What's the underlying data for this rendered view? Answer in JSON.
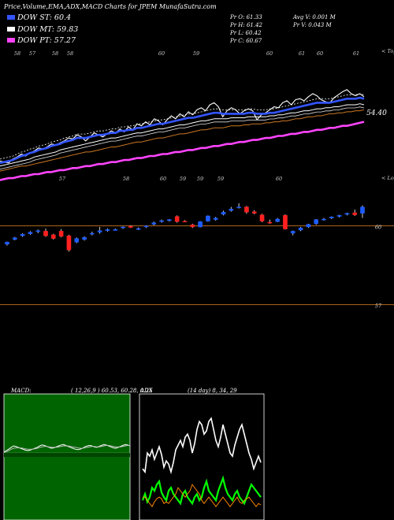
{
  "header": {
    "title": "Price,Volume,EMA,ADX,MACD Charts for JPEM MunafaSutra.com",
    "ema_st": "DOW ST: 60.4",
    "ema_mt": "DOW MT: 59.83",
    "ema_pt": "DOW PT: 57.27",
    "pr_o": "Pr   O: 61.33",
    "pr_h": "Pr   H: 61.42",
    "pr_l": "Pr   L: 60.42",
    "pr_c": "Pr   C: 60.67",
    "avg_v": "Avg V: 0.001 M",
    "pr_v": "Pr   V: 0.043 M"
  },
  "colors": {
    "up": "#1e5cff",
    "down": "#ff2020",
    "ema_st": "#3355ff",
    "ema_mt": "#ffffff",
    "ema_pt": "#ff44ff",
    "orange": "#cc7722",
    "macd_panel": "#006400",
    "adx_green": "#00ff00"
  },
  "panels": {
    "top_label": "< Topo",
    "middle_label": "< Lows",
    "macd_label": "MACD:",
    "macd_values": "( 12,26,9 ) 60.53, 60.28, 0.25",
    "adx_label": "ADX",
    "adx_values": "(14 day) 8, 34, 29"
  },
  "chart_data": [
    {
      "type": "line",
      "panel": "price-ema",
      "right_label": "54.40",
      "top_tick_labels": [
        "58",
        "57",
        "58",
        "58",
        "60",
        "59",
        "60",
        "61",
        "60",
        "61"
      ],
      "bottom_tick_labels": [
        "57",
        "58",
        "60",
        "59",
        "59",
        "59",
        "60"
      ],
      "series": [
        {
          "name": "price",
          "values": [
            54.2,
            54.1,
            54.0,
            54.4,
            54.6,
            54.9,
            54.7,
            55.0,
            55.2,
            55.5,
            55.4,
            55.6,
            55.9,
            55.8,
            56.0,
            56.2,
            56.5,
            56.4,
            56.8,
            56.6,
            56.2,
            56.6,
            57.0,
            56.8,
            56.6,
            56.9,
            57.2,
            57.0,
            57.4,
            57.1,
            57.6,
            57.3,
            57.9,
            57.7,
            58.1,
            57.8,
            58.4,
            58.2,
            57.8,
            58.3,
            58.7,
            58.4,
            58.9,
            58.6,
            59.1,
            58.8,
            59.3,
            59.5,
            59.2,
            59.8,
            60.0,
            59.6,
            58.6,
            59.2,
            59.5,
            59.3,
            58.9,
            59.2,
            59.4,
            59.2,
            58.3,
            58.8,
            59.0,
            59.3,
            59.6,
            59.5,
            60.0,
            60.2,
            59.8,
            60.3,
            60.4,
            60.2,
            60.6,
            60.9,
            60.7,
            60.3,
            60.1,
            60.0,
            60.5,
            60.8,
            61.1,
            61.3,
            60.9,
            60.7,
            60.9,
            60.6
          ]
        },
        {
          "name": "ema-st",
          "values": [
            54.0,
            54.1,
            54.2,
            54.3,
            54.5,
            54.7,
            54.8,
            55.0,
            55.1,
            55.3,
            55.4,
            55.5,
            55.7,
            55.8,
            55.9,
            56.1,
            56.2,
            56.3,
            56.5,
            56.5,
            56.5,
            56.6,
            56.7,
            56.8,
            56.8,
            56.9,
            57.0,
            57.0,
            57.2,
            57.2,
            57.3,
            57.3,
            57.5,
            57.5,
            57.6,
            57.7,
            57.8,
            57.9,
            57.9,
            58.0,
            58.1,
            58.2,
            58.3,
            58.4,
            58.5,
            58.5,
            58.6,
            58.7,
            58.8,
            58.9,
            59.0,
            59.0,
            58.9,
            58.9,
            58.9,
            58.9,
            58.9,
            58.9,
            59.0,
            59.0,
            58.9,
            58.9,
            58.9,
            59.0,
            59.0,
            59.1,
            59.2,
            59.3,
            59.4,
            59.5,
            59.6,
            59.7,
            59.8,
            59.9,
            60.0,
            60.0,
            60.0,
            60.0,
            60.1,
            60.2,
            60.3,
            60.4,
            60.4,
            60.4,
            60.5,
            60.4
          ]
        },
        {
          "name": "ema-mt",
          "values": [
            53.7,
            53.8,
            53.9,
            54.0,
            54.1,
            54.2,
            54.3,
            54.4,
            54.6,
            54.7,
            54.8,
            54.9,
            55.0,
            55.1,
            55.3,
            55.4,
            55.5,
            55.6,
            55.7,
            55.8,
            55.9,
            56.0,
            56.1,
            56.2,
            56.3,
            56.4,
            56.5,
            56.5,
            56.6,
            56.7,
            56.8,
            56.9,
            57.0,
            57.0,
            57.1,
            57.2,
            57.3,
            57.4,
            57.4,
            57.5,
            57.6,
            57.7,
            57.8,
            57.8,
            57.9,
            58.0,
            58.1,
            58.2,
            58.2,
            58.3,
            58.4,
            58.4,
            58.4,
            58.4,
            58.5,
            58.5,
            58.5,
            58.5,
            58.6,
            58.6,
            58.6,
            58.6,
            58.6,
            58.7,
            58.7,
            58.8,
            58.8,
            58.9,
            59.0,
            59.0,
            59.1,
            59.2,
            59.2,
            59.3,
            59.4,
            59.4,
            59.5,
            59.5,
            59.6,
            59.6,
            59.7,
            59.8,
            59.8,
            59.8,
            59.9,
            59.8
          ]
        },
        {
          "name": "ema-lt",
          "values": [
            53.2,
            53.3,
            53.4,
            53.5,
            53.6,
            53.7,
            53.7,
            53.8,
            53.9,
            54.0,
            54.1,
            54.2,
            54.3,
            54.4,
            54.5,
            54.6,
            54.7,
            54.8,
            54.9,
            55.0,
            55.1,
            55.1,
            55.2,
            55.3,
            55.4,
            55.5,
            55.6,
            55.6,
            55.7,
            55.8,
            55.9,
            56.0,
            56.1,
            56.1,
            56.2,
            56.3,
            56.4,
            56.5,
            56.5,
            56.6,
            56.7,
            56.8,
            56.9,
            56.9,
            57.0,
            57.1,
            57.2,
            57.3,
            57.3,
            57.4,
            57.5,
            57.5,
            57.5,
            57.6,
            57.7,
            57.7,
            57.7,
            57.8,
            57.8,
            57.9,
            57.9,
            57.9,
            58.0,
            58.0,
            58.1,
            58.1,
            58.2,
            58.2,
            58.3,
            58.4,
            58.4,
            58.5,
            58.6,
            58.6,
            58.7,
            58.7,
            58.8,
            58.9,
            58.9,
            59.0,
            59.0,
            59.1,
            59.1,
            59.2,
            59.2,
            59.3
          ]
        },
        {
          "name": "ema-pt",
          "values": [
            52.3,
            52.4,
            52.5,
            52.5,
            52.6,
            52.7,
            52.7,
            52.8,
            52.9,
            52.9,
            53.0,
            53.1,
            53.1,
            53.2,
            53.3,
            53.3,
            53.4,
            53.5,
            53.5,
            53.6,
            53.7,
            53.7,
            53.8,
            53.9,
            53.9,
            54.0,
            54.1,
            54.1,
            54.2,
            54.3,
            54.3,
            54.4,
            54.5,
            54.5,
            54.6,
            54.7,
            54.7,
            54.8,
            54.9,
            54.9,
            55.0,
            55.1,
            55.1,
            55.2,
            55.3,
            55.3,
            55.4,
            55.5,
            55.5,
            55.6,
            55.7,
            55.7,
            55.8,
            55.9,
            55.9,
            56.0,
            56.1,
            56.1,
            56.2,
            56.3,
            56.3,
            56.4,
            56.5,
            56.5,
            56.6,
            56.7,
            56.7,
            56.8,
            56.9,
            56.9,
            57.0,
            57.1,
            57.1,
            57.2,
            57.3,
            57.3,
            57.4,
            57.5,
            57.5,
            57.6,
            57.7,
            57.7,
            57.8,
            57.9,
            58.0,
            58.1
          ]
        }
      ]
    },
    {
      "type": "candlestick",
      "panel": "price-candles",
      "ylim": [
        56.6,
        61.4
      ],
      "hlines": [
        60,
        57
      ],
      "hline_labels": [
        "60",
        "57"
      ],
      "candles": [
        {
          "o": 59.3,
          "h": 59.4,
          "l": 59.25,
          "c": 59.38
        },
        {
          "o": 59.48,
          "h": 59.58,
          "l": 59.45,
          "c": 59.55
        },
        {
          "o": 59.62,
          "h": 59.72,
          "l": 59.58,
          "c": 59.68
        },
        {
          "o": 59.7,
          "h": 59.8,
          "l": 59.66,
          "c": 59.76
        },
        {
          "o": 59.78,
          "h": 59.86,
          "l": 59.72,
          "c": 59.82
        },
        {
          "o": 59.8,
          "h": 59.9,
          "l": 59.58,
          "c": 59.62
        },
        {
          "o": 59.66,
          "h": 59.7,
          "l": 59.48,
          "c": 59.52
        },
        {
          "o": 59.8,
          "h": 59.88,
          "l": 59.56,
          "c": 59.6
        },
        {
          "o": 59.62,
          "h": 59.66,
          "l": 59.02,
          "c": 59.08
        },
        {
          "o": 59.38,
          "h": 59.56,
          "l": 59.34,
          "c": 59.52
        },
        {
          "o": 59.48,
          "h": 59.6,
          "l": 59.44,
          "c": 59.56
        },
        {
          "o": 59.7,
          "h": 59.78,
          "l": 59.64,
          "c": 59.72
        },
        {
          "o": 59.76,
          "h": 59.96,
          "l": 59.7,
          "c": 59.82
        },
        {
          "o": 59.82,
          "h": 59.9,
          "l": 59.78,
          "c": 59.86
        },
        {
          "o": 59.86,
          "h": 59.9,
          "l": 59.84,
          "c": 59.86
        },
        {
          "o": 59.92,
          "h": 59.98,
          "l": 59.88,
          "c": 59.96
        },
        {
          "o": 59.98,
          "h": 60.02,
          "l": 59.92,
          "c": 59.94
        },
        {
          "o": 59.88,
          "h": 59.94,
          "l": 59.84,
          "c": 59.9
        },
        {
          "o": 59.96,
          "h": 60.02,
          "l": 59.92,
          "c": 60.0
        },
        {
          "o": 60.06,
          "h": 60.16,
          "l": 60.02,
          "c": 60.12
        },
        {
          "o": 60.16,
          "h": 60.24,
          "l": 60.12,
          "c": 60.2
        },
        {
          "o": 60.2,
          "h": 60.26,
          "l": 60.16,
          "c": 60.24
        },
        {
          "o": 60.36,
          "h": 60.4,
          "l": 60.12,
          "c": 60.16
        },
        {
          "o": 60.18,
          "h": 60.22,
          "l": 60.14,
          "c": 60.16
        },
        {
          "o": 60.04,
          "h": 60.08,
          "l": 59.92,
          "c": 59.96
        },
        {
          "o": 59.96,
          "h": 60.18,
          "l": 59.94,
          "c": 60.16
        },
        {
          "o": 60.18,
          "h": 60.4,
          "l": 60.16,
          "c": 60.38
        },
        {
          "o": 60.24,
          "h": 60.34,
          "l": 60.2,
          "c": 60.3
        },
        {
          "o": 60.44,
          "h": 60.58,
          "l": 60.4,
          "c": 60.52
        },
        {
          "o": 60.58,
          "h": 60.72,
          "l": 60.54,
          "c": 60.64
        },
        {
          "o": 60.7,
          "h": 60.86,
          "l": 60.66,
          "c": 60.72
        },
        {
          "o": 60.72,
          "h": 60.76,
          "l": 60.46,
          "c": 60.52
        },
        {
          "o": 60.54,
          "h": 60.6,
          "l": 60.44,
          "c": 60.48
        },
        {
          "o": 60.42,
          "h": 60.46,
          "l": 60.14,
          "c": 60.18
        },
        {
          "o": 60.14,
          "h": 60.24,
          "l": 60.08,
          "c": 60.12
        },
        {
          "o": 60.16,
          "h": 60.3,
          "l": 60.14,
          "c": 60.26
        },
        {
          "o": 60.4,
          "h": 60.44,
          "l": 59.86,
          "c": 59.88
        },
        {
          "o": 59.72,
          "h": 59.82,
          "l": 59.64,
          "c": 59.8
        },
        {
          "o": 59.84,
          "h": 59.96,
          "l": 59.8,
          "c": 59.92
        },
        {
          "o": 59.96,
          "h": 60.08,
          "l": 59.92,
          "c": 60.06
        },
        {
          "o": 60.08,
          "h": 60.26,
          "l": 60.04,
          "c": 60.24
        },
        {
          "o": 60.24,
          "h": 60.3,
          "l": 60.2,
          "c": 60.26
        },
        {
          "o": 60.3,
          "h": 60.36,
          "l": 60.26,
          "c": 60.34
        },
        {
          "o": 60.36,
          "h": 60.42,
          "l": 60.32,
          "c": 60.4
        },
        {
          "o": 60.44,
          "h": 60.5,
          "l": 60.4,
          "c": 60.48
        },
        {
          "o": 60.5,
          "h": 60.62,
          "l": 60.38,
          "c": 60.42
        },
        {
          "o": 60.48,
          "h": 60.78,
          "l": 60.3,
          "c": 60.72
        }
      ]
    },
    {
      "type": "line",
      "panel": "macd",
      "ylim": [
        -1,
        1
      ],
      "series": [
        {
          "name": "macd",
          "values": [
            0.02,
            0.05,
            0.08,
            0.12,
            0.15,
            0.14,
            0.12,
            0.1,
            0.08,
            0.06,
            0.05,
            0.06,
            0.08,
            0.1,
            0.12,
            0.15,
            0.17,
            0.16,
            0.14,
            0.12,
            0.1,
            0.11,
            0.13,
            0.15,
            0.17,
            0.18,
            0.16,
            0.14,
            0.12,
            0.1,
            0.08,
            0.07,
            0.08,
            0.1,
            0.13,
            0.15,
            0.16,
            0.15,
            0.13,
            0.12,
            0.14,
            0.16,
            0.18,
            0.17,
            0.15,
            0.13,
            0.11,
            0.1,
            0.12,
            0.14,
            0.16,
            0.18,
            0.17,
            0.15
          ]
        },
        {
          "name": "signal",
          "values": [
            0.01,
            0.03,
            0.05,
            0.08,
            0.1,
            0.11,
            0.11,
            0.11,
            0.1,
            0.09,
            0.08,
            0.08,
            0.08,
            0.09,
            0.1,
            0.12,
            0.13,
            0.14,
            0.14,
            0.13,
            0.12,
            0.12,
            0.12,
            0.13,
            0.14,
            0.15,
            0.15,
            0.15,
            0.14,
            0.13,
            0.12,
            0.11,
            0.1,
            0.1,
            0.11,
            0.12,
            0.13,
            0.14,
            0.14,
            0.13,
            0.13,
            0.14,
            0.15,
            0.16,
            0.16,
            0.15,
            0.14,
            0.13,
            0.13,
            0.13,
            0.14,
            0.15,
            0.16,
            0.16
          ]
        }
      ]
    },
    {
      "type": "line",
      "panel": "adx",
      "ylim": [
        0,
        70
      ],
      "series": [
        {
          "name": "di-plus",
          "values": [
            30,
            28,
            40,
            38,
            42,
            36,
            40,
            44,
            39,
            31,
            35,
            33,
            28,
            34,
            42,
            45,
            48,
            44,
            50,
            52,
            48,
            40,
            46,
            55,
            60,
            58,
            52,
            54,
            60,
            62,
            55,
            48,
            44,
            50,
            58,
            52,
            46,
            40,
            38,
            45,
            50,
            55,
            58,
            52,
            46,
            40,
            36,
            30,
            34,
            38,
            34
          ]
        },
        {
          "name": "di-minus",
          "values": [
            10,
            14,
            9,
            12,
            18,
            16,
            20,
            22,
            15,
            12,
            10,
            16,
            18,
            14,
            12,
            10,
            8,
            14,
            16,
            12,
            10,
            8,
            12,
            14,
            10,
            12,
            18,
            22,
            16,
            14,
            12,
            10,
            16,
            20,
            24,
            18,
            14,
            12,
            10,
            14,
            16,
            12,
            10,
            8,
            12,
            16,
            20,
            18,
            16,
            14,
            12
          ]
        },
        {
          "name": "adx",
          "values": [
            12,
            12,
            10,
            8,
            6,
            9,
            11,
            12,
            11,
            8,
            9,
            8,
            10,
            12,
            14,
            18,
            16,
            14,
            12,
            14,
            16,
            20,
            18,
            16,
            14,
            10,
            8,
            10,
            12,
            10,
            8,
            6,
            8,
            10,
            12,
            10,
            8,
            6,
            8,
            10,
            12,
            9,
            8,
            10,
            11,
            12,
            10,
            8,
            6,
            8,
            7
          ]
        }
      ]
    }
  ]
}
